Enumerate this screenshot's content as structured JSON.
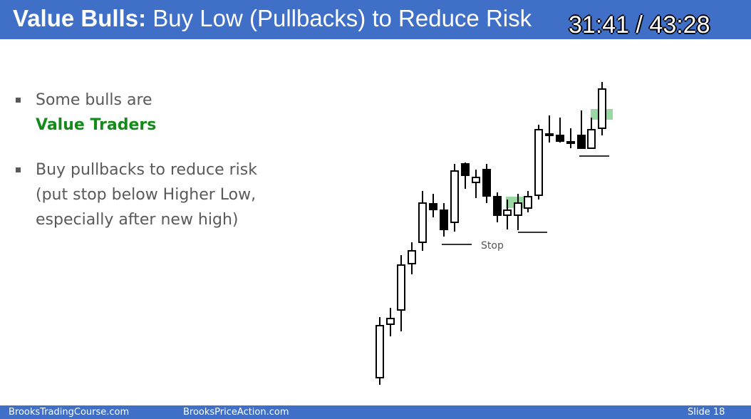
{
  "header": {
    "title_bold": "Value Bulls:",
    "title": "Buy Low (Pullbacks) to Reduce Risk",
    "timer": "31:41 / 43:28"
  },
  "bullets": [
    {
      "text": "Some bulls are",
      "highlight": "Value Traders"
    },
    {
      "lines": [
        "Buy pullbacks to reduce risk",
        "(put stop below Higher Low,",
        "especially after new high)"
      ]
    }
  ],
  "diagram": {
    "stop_label": "Stop"
  },
  "footer": {
    "left": "BrooksTradingCourse.com",
    "middle": "BrooksPriceAction.com",
    "slide": "Slide 18"
  }
}
